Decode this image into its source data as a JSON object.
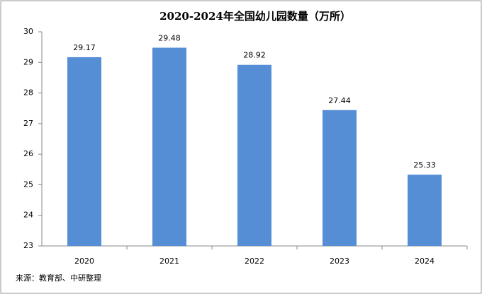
{
  "chart_data": {
    "type": "bar",
    "title": "2020-2024年全国幼儿园数量（万所）",
    "categories": [
      "2020",
      "2021",
      "2022",
      "2023",
      "2024"
    ],
    "values": [
      29.17,
      29.48,
      28.92,
      27.44,
      25.33
    ],
    "color": "#558ed5",
    "ylim": [
      23,
      30
    ],
    "yticks": [
      23,
      24,
      25,
      26,
      27,
      28,
      29,
      30
    ],
    "grid": false,
    "source": "来源：教育部、中研整理"
  }
}
